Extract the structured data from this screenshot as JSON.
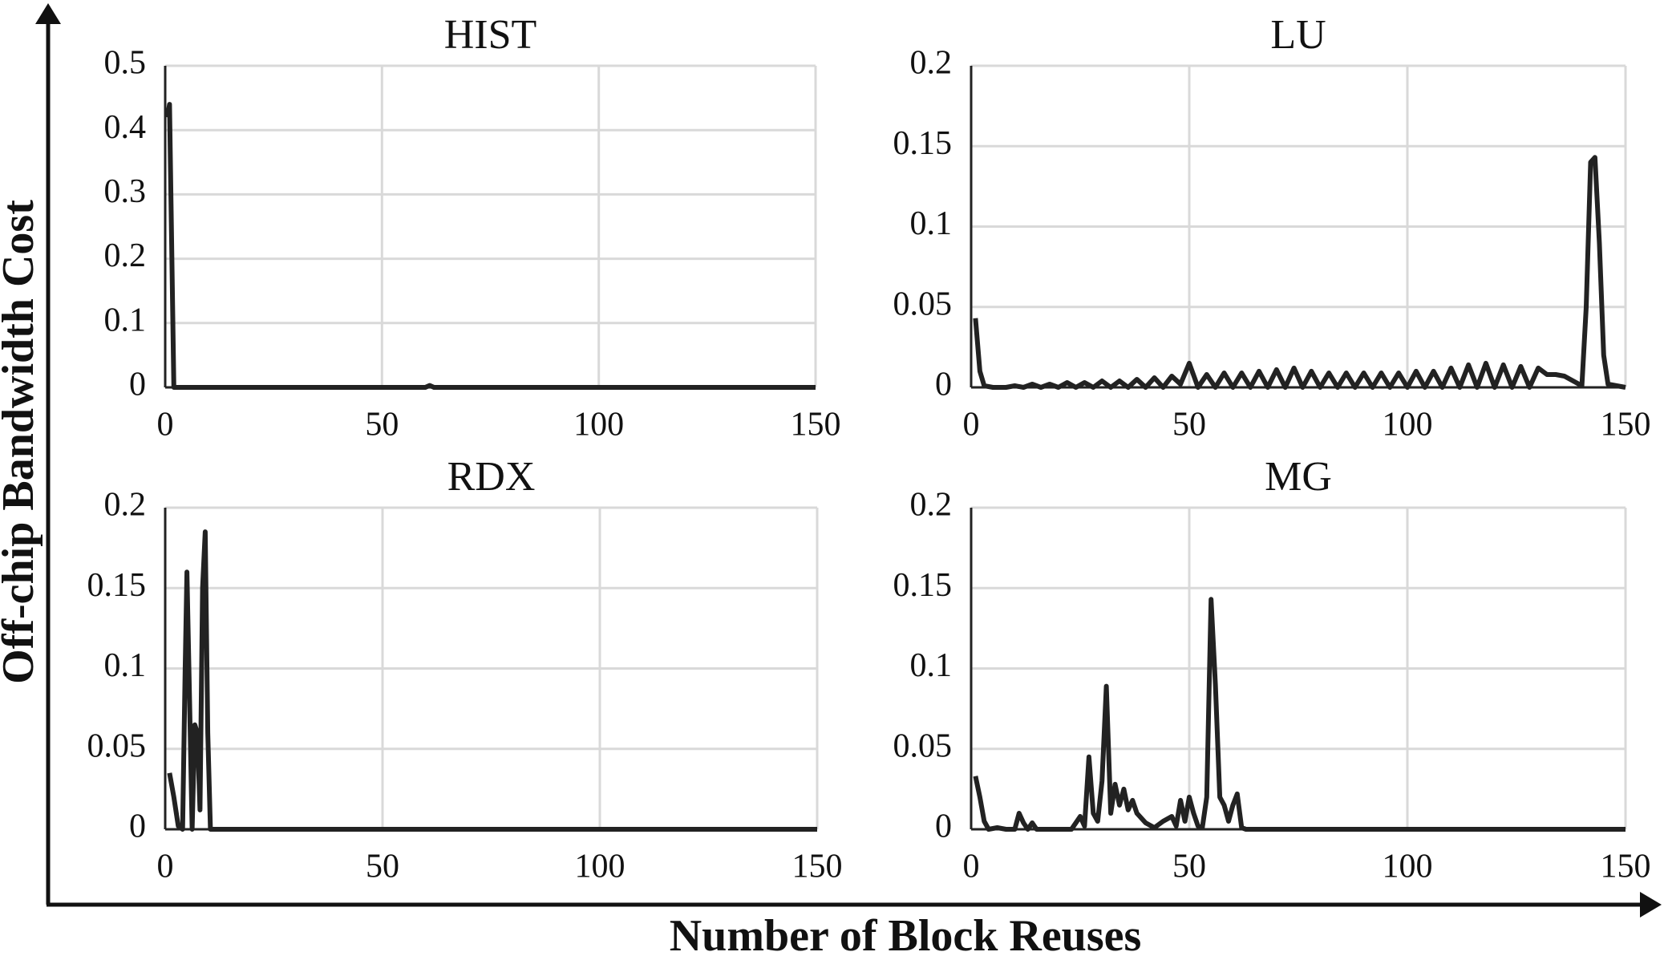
{
  "y_label": "Off-chip Bandwidth Cost",
  "x_label": "Number of Block Reuses",
  "chart_data": [
    {
      "type": "line",
      "title": "HIST",
      "color": "#222222",
      "grid": true,
      "xlim": [
        0,
        150
      ],
      "xticks": [
        0,
        50,
        100,
        150
      ],
      "ylim": [
        0,
        0.5
      ],
      "yticks": [
        0,
        0.1,
        0.2,
        0.3,
        0.4,
        0.5
      ],
      "x": [
        0.5,
        1,
        2,
        3,
        60,
        61,
        62,
        150
      ],
      "values": [
        0.42,
        0.44,
        0.0,
        0,
        0,
        0.003,
        0,
        0
      ]
    },
    {
      "type": "line",
      "title": "LU",
      "color": "#222222",
      "grid": true,
      "xlim": [
        0,
        150
      ],
      "xticks": [
        0,
        50,
        100,
        150
      ],
      "ylim": [
        0,
        0.2
      ],
      "yticks": [
        0,
        0.05,
        0.1,
        0.15,
        0.2
      ],
      "x": [
        1,
        2,
        3,
        5,
        8,
        10,
        12,
        14,
        16,
        18,
        20,
        22,
        24,
        26,
        28,
        30,
        32,
        34,
        36,
        38,
        40,
        42,
        44,
        46,
        48,
        50,
        52,
        54,
        56,
        58,
        60,
        62,
        64,
        66,
        68,
        70,
        72,
        74,
        76,
        78,
        80,
        82,
        84,
        86,
        88,
        90,
        92,
        94,
        96,
        98,
        100,
        102,
        104,
        106,
        108,
        110,
        112,
        114,
        116,
        118,
        120,
        122,
        124,
        126,
        128,
        130,
        132,
        134,
        136,
        138,
        140,
        141,
        142,
        143,
        144,
        145,
        146,
        150
      ],
      "values": [
        0.043,
        0.01,
        0.001,
        0,
        0,
        0.001,
        0,
        0.002,
        0,
        0.002,
        0,
        0.003,
        0,
        0.003,
        0,
        0.004,
        0,
        0.004,
        0,
        0.005,
        0,
        0.006,
        0,
        0.007,
        0.002,
        0.015,
        0,
        0.008,
        0,
        0.009,
        0,
        0.009,
        0,
        0.01,
        0,
        0.011,
        0,
        0.012,
        0,
        0.01,
        0,
        0.009,
        0,
        0.009,
        0,
        0.009,
        0,
        0.009,
        0,
        0.009,
        0,
        0.01,
        0,
        0.01,
        0,
        0.012,
        0,
        0.014,
        0,
        0.015,
        0,
        0.014,
        0,
        0.013,
        0,
        0.012,
        0.008,
        0.008,
        0.007,
        0.004,
        0.001,
        0.05,
        0.14,
        0.143,
        0.09,
        0.02,
        0.002,
        0
      ]
    },
    {
      "type": "line",
      "title": "RDX",
      "color": "#222222",
      "grid": true,
      "xlim": [
        0,
        150
      ],
      "xticks": [
        0,
        50,
        100,
        150
      ],
      "ylim": [
        0,
        0.2
      ],
      "yticks": [
        0,
        0.05,
        0.1,
        0.15,
        0.2
      ],
      "x": [
        1,
        2,
        3,
        4,
        4.6,
        5,
        5.6,
        6.2,
        6.8,
        7.4,
        8,
        8.6,
        9.2,
        9.8,
        10.4,
        11,
        150
      ],
      "values": [
        0.035,
        0.02,
        0.002,
        0,
        0.1,
        0.16,
        0.08,
        0,
        0.065,
        0.06,
        0.012,
        0.15,
        0.185,
        0.06,
        0,
        0,
        0
      ]
    },
    {
      "type": "line",
      "title": "MG",
      "color": "#222222",
      "grid": true,
      "xlim": [
        0,
        150
      ],
      "xticks": [
        0,
        50,
        100,
        150
      ],
      "ylim": [
        0,
        0.2
      ],
      "yticks": [
        0,
        0.05,
        0.1,
        0.15,
        0.2
      ],
      "x": [
        1,
        2,
        3,
        4,
        6,
        8,
        10,
        11,
        12,
        13,
        14,
        15,
        23,
        24,
        25,
        26,
        27,
        28,
        29,
        30,
        31,
        32,
        33,
        34,
        35,
        36,
        37,
        38,
        40,
        42,
        44,
        46,
        47,
        48,
        49,
        50,
        51,
        52,
        53,
        54,
        55,
        56,
        57,
        58,
        59,
        60,
        61,
        62,
        63,
        150
      ],
      "values": [
        0.033,
        0.02,
        0.005,
        0,
        0.001,
        0,
        0,
        0.01,
        0.004,
        0,
        0.004,
        0,
        0,
        0.004,
        0.008,
        0.002,
        0.045,
        0.01,
        0.005,
        0.03,
        0.089,
        0.01,
        0.028,
        0.015,
        0.025,
        0.012,
        0.018,
        0.01,
        0.004,
        0.001,
        0.005,
        0.008,
        0.002,
        0.018,
        0.005,
        0.02,
        0.01,
        0.002,
        0.001,
        0.02,
        0.143,
        0.09,
        0.02,
        0.015,
        0.005,
        0.015,
        0.022,
        0.001,
        0,
        0
      ]
    }
  ]
}
